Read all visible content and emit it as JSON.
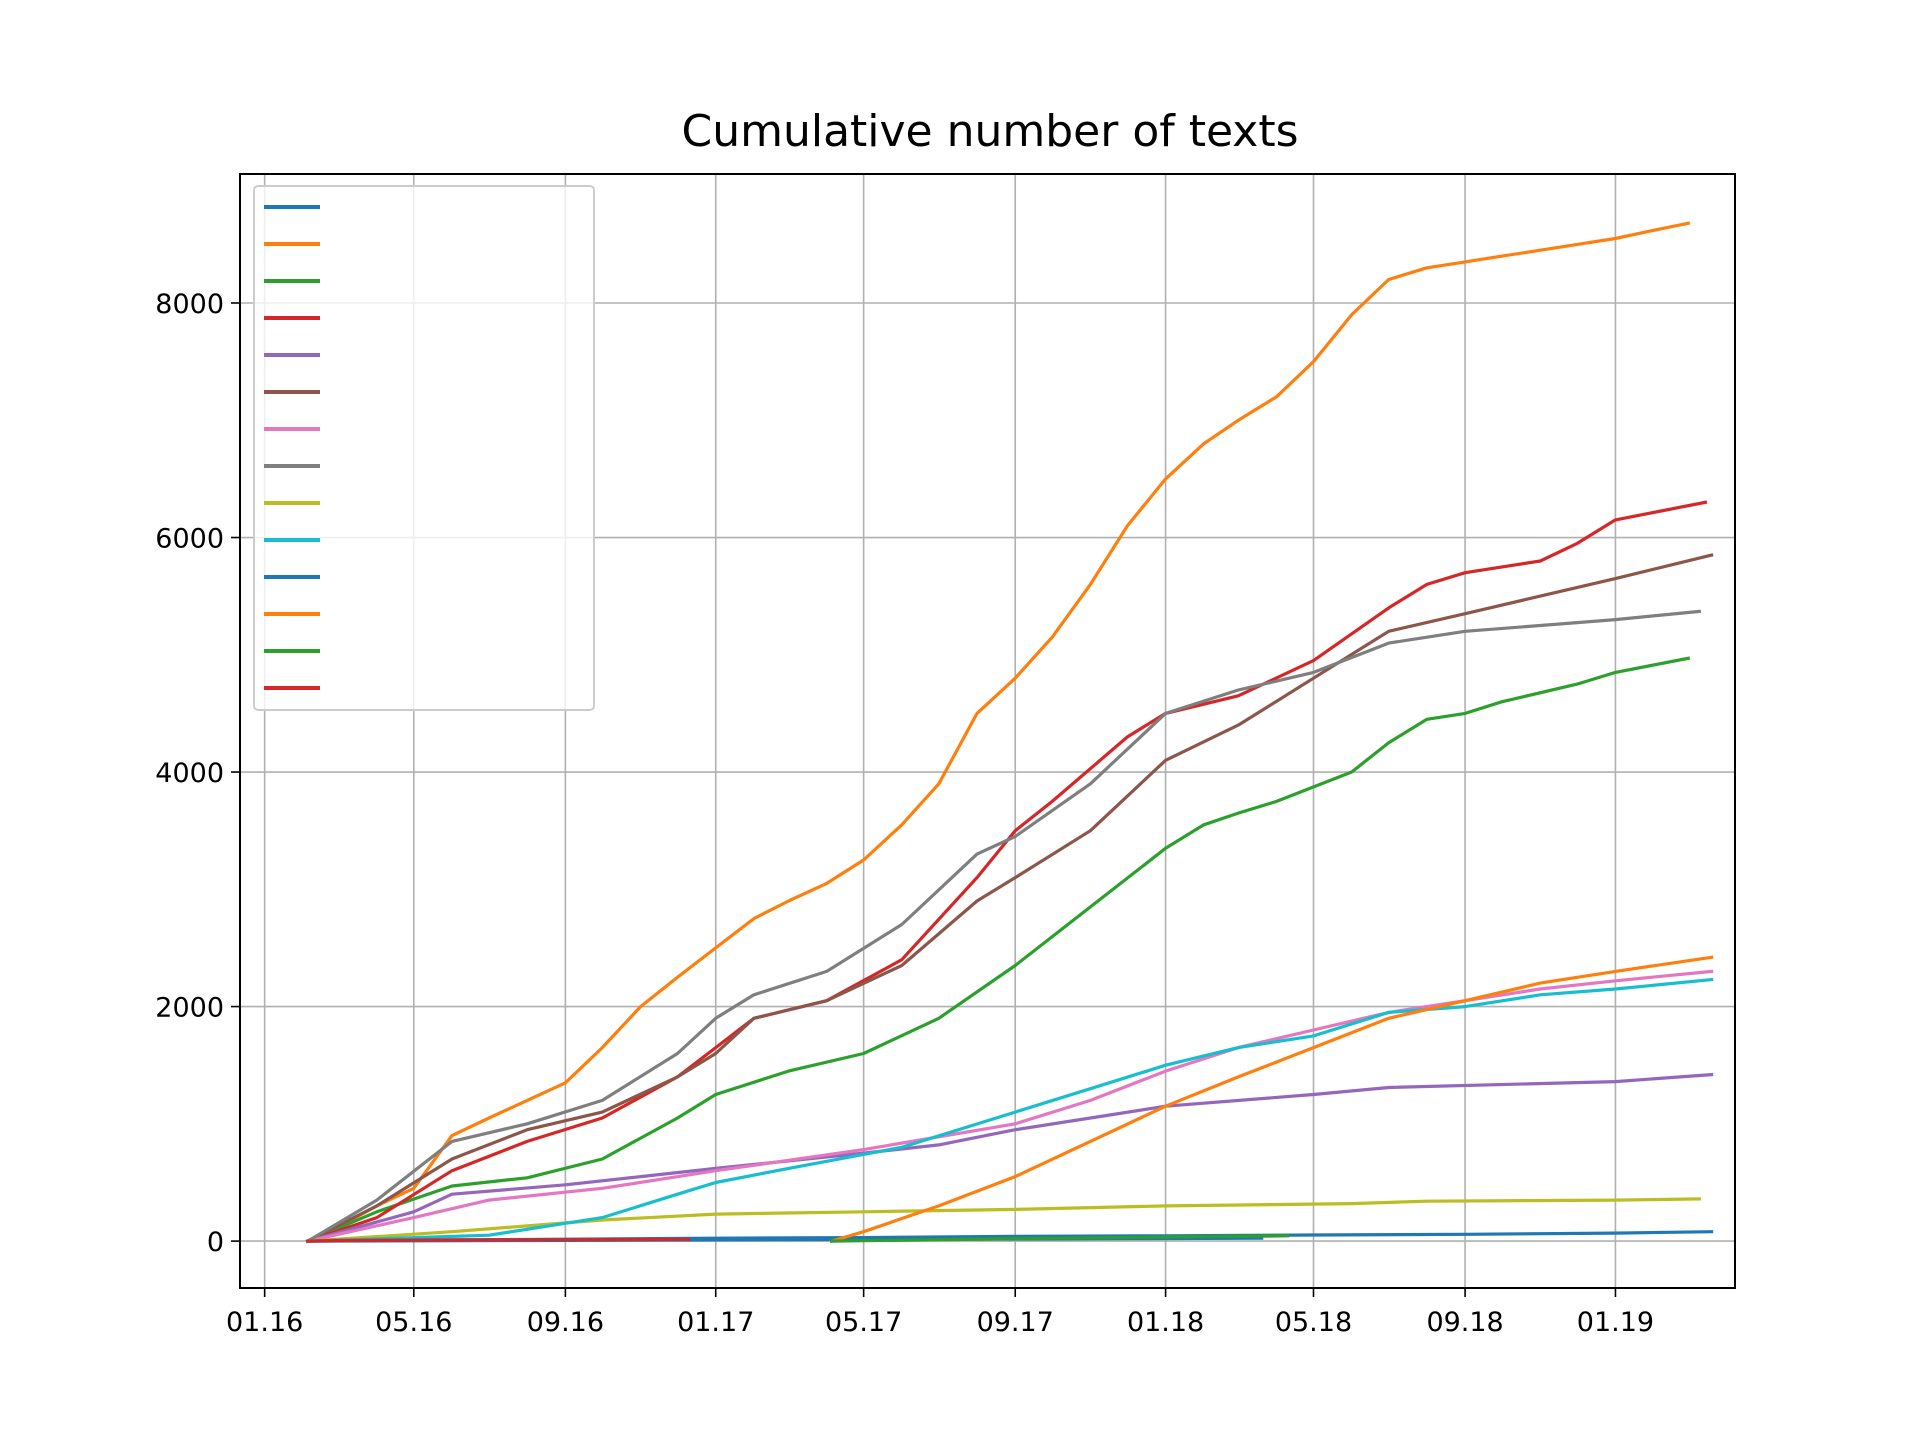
{
  "chart_data": {
    "type": "line",
    "title": "Cumulative number of texts",
    "xlabel": "",
    "ylabel": "",
    "x_ticks": [
      "01.16",
      "05.16",
      "09.16",
      "01.17",
      "05.17",
      "09.17",
      "01.18",
      "05.18",
      "09.18",
      "01.19"
    ],
    "y_ticks": [
      "0",
      "2000",
      "4000",
      "6000",
      "8000"
    ],
    "ylim": [
      -400,
      9100
    ],
    "xlim": [
      "2015-12-12",
      "2019-04-08"
    ],
    "grid": true,
    "legend": "upper-left",
    "series": [
      {
        "color": "#1f77b4",
        "points": [
          [
            "2016-02-05",
            0
          ],
          [
            "2016-06-01",
            10
          ],
          [
            "2016-10-01",
            18
          ],
          [
            "2017-01-01",
            25
          ],
          [
            "2017-05-01",
            30
          ],
          [
            "2017-09-01",
            40
          ],
          [
            "2018-01-01",
            45
          ],
          [
            "2018-05-01",
            52
          ],
          [
            "2018-09-01",
            58
          ],
          [
            "2019-01-01",
            68
          ],
          [
            "2019-03-20",
            80
          ]
        ]
      },
      {
        "color": "#ff7f0e",
        "points": [
          [
            "2016-02-05",
            0
          ],
          [
            "2016-03-01",
            120
          ],
          [
            "2016-04-01",
            300
          ],
          [
            "2016-05-01",
            450
          ],
          [
            "2016-06-01",
            900
          ],
          [
            "2016-07-01",
            1050
          ],
          [
            "2016-08-01",
            1200
          ],
          [
            "2016-09-01",
            1350
          ],
          [
            "2016-10-01",
            1650
          ],
          [
            "2016-11-01",
            2000
          ],
          [
            "2016-12-01",
            2250
          ],
          [
            "2017-01-01",
            2500
          ],
          [
            "2017-02-01",
            2750
          ],
          [
            "2017-03-01",
            2900
          ],
          [
            "2017-04-01",
            3050
          ],
          [
            "2017-05-01",
            3250
          ],
          [
            "2017-06-01",
            3550
          ],
          [
            "2017-07-01",
            3900
          ],
          [
            "2017-08-01",
            4500
          ],
          [
            "2017-09-01",
            4800
          ],
          [
            "2017-10-01",
            5150
          ],
          [
            "2017-11-01",
            5600
          ],
          [
            "2017-12-01",
            6100
          ],
          [
            "2018-01-01",
            6500
          ],
          [
            "2018-02-01",
            6800
          ],
          [
            "2018-03-01",
            7000
          ],
          [
            "2018-04-01",
            7200
          ],
          [
            "2018-05-01",
            7500
          ],
          [
            "2018-06-01",
            7900
          ],
          [
            "2018-07-01",
            8200
          ],
          [
            "2018-08-01",
            8300
          ],
          [
            "2018-09-01",
            8350
          ],
          [
            "2018-10-01",
            8400
          ],
          [
            "2018-11-01",
            8450
          ],
          [
            "2018-12-01",
            8500
          ],
          [
            "2019-01-01",
            8550
          ],
          [
            "2019-02-01",
            8620
          ],
          [
            "2019-03-01",
            8680
          ]
        ]
      },
      {
        "color": "#2ca02c",
        "points": [
          [
            "2016-02-05",
            0
          ],
          [
            "2016-04-01",
            250
          ],
          [
            "2016-06-01",
            470
          ],
          [
            "2016-08-01",
            540
          ],
          [
            "2016-10-01",
            700
          ],
          [
            "2016-12-01",
            1050
          ],
          [
            "2017-01-01",
            1250
          ],
          [
            "2017-03-01",
            1450
          ],
          [
            "2017-05-01",
            1600
          ],
          [
            "2017-07-01",
            1900
          ],
          [
            "2017-09-01",
            2350
          ],
          [
            "2017-11-01",
            2850
          ],
          [
            "2018-01-01",
            3350
          ],
          [
            "2018-02-01",
            3550
          ],
          [
            "2018-03-01",
            3650
          ],
          [
            "2018-04-01",
            3750
          ],
          [
            "2018-06-01",
            4000
          ],
          [
            "2018-07-01",
            4250
          ],
          [
            "2018-08-01",
            4450
          ],
          [
            "2018-09-01",
            4500
          ],
          [
            "2018-10-01",
            4600
          ],
          [
            "2018-12-01",
            4750
          ],
          [
            "2019-01-01",
            4850
          ],
          [
            "2019-03-01",
            4970
          ]
        ]
      },
      {
        "color": "#d62728",
        "points": [
          [
            "2016-02-05",
            0
          ],
          [
            "2016-04-01",
            200
          ],
          [
            "2016-06-01",
            600
          ],
          [
            "2016-08-01",
            850
          ],
          [
            "2016-10-01",
            1050
          ],
          [
            "2016-12-01",
            1400
          ],
          [
            "2017-01-01",
            1650
          ],
          [
            "2017-02-01",
            1900
          ],
          [
            "2017-04-01",
            2050
          ],
          [
            "2017-06-01",
            2400
          ],
          [
            "2017-08-01",
            3100
          ],
          [
            "2017-09-01",
            3500
          ],
          [
            "2017-10-01",
            3750
          ],
          [
            "2017-12-01",
            4300
          ],
          [
            "2018-01-01",
            4500
          ],
          [
            "2018-03-01",
            4650
          ],
          [
            "2018-05-01",
            4950
          ],
          [
            "2018-07-01",
            5400
          ],
          [
            "2018-08-01",
            5600
          ],
          [
            "2018-09-01",
            5700
          ],
          [
            "2018-11-01",
            5800
          ],
          [
            "2018-12-01",
            5950
          ],
          [
            "2019-01-01",
            6150
          ],
          [
            "2019-03-15",
            6300
          ]
        ]
      },
      {
        "color": "#9467bd",
        "points": [
          [
            "2016-02-05",
            0
          ],
          [
            "2016-05-01",
            250
          ],
          [
            "2016-06-01",
            400
          ],
          [
            "2016-09-01",
            480
          ],
          [
            "2017-01-01",
            620
          ],
          [
            "2017-05-01",
            750
          ],
          [
            "2017-07-01",
            820
          ],
          [
            "2017-09-01",
            950
          ],
          [
            "2017-11-01",
            1050
          ],
          [
            "2018-01-01",
            1150
          ],
          [
            "2018-05-01",
            1250
          ],
          [
            "2018-07-01",
            1310
          ],
          [
            "2019-01-01",
            1360
          ],
          [
            "2019-03-20",
            1420
          ]
        ]
      },
      {
        "color": "#8c564b",
        "points": [
          [
            "2016-02-05",
            0
          ],
          [
            "2016-04-01",
            300
          ],
          [
            "2016-06-01",
            700
          ],
          [
            "2016-08-01",
            950
          ],
          [
            "2016-10-01",
            1100
          ],
          [
            "2016-12-01",
            1400
          ],
          [
            "2017-01-01",
            1600
          ],
          [
            "2017-02-01",
            1900
          ],
          [
            "2017-04-01",
            2050
          ],
          [
            "2017-06-01",
            2350
          ],
          [
            "2017-08-01",
            2900
          ],
          [
            "2017-09-01",
            3100
          ],
          [
            "2017-11-01",
            3500
          ],
          [
            "2018-01-01",
            4100
          ],
          [
            "2018-03-01",
            4400
          ],
          [
            "2018-05-01",
            4800
          ],
          [
            "2018-07-01",
            5200
          ],
          [
            "2018-09-01",
            5350
          ],
          [
            "2018-11-01",
            5500
          ],
          [
            "2019-01-01",
            5650
          ],
          [
            "2019-03-20",
            5850
          ]
        ]
      },
      {
        "color": "#e377c2",
        "points": [
          [
            "2016-02-05",
            0
          ],
          [
            "2016-05-01",
            200
          ],
          [
            "2016-07-01",
            350
          ],
          [
            "2016-10-01",
            450
          ],
          [
            "2017-01-01",
            600
          ],
          [
            "2017-05-01",
            780
          ],
          [
            "2017-09-01",
            1000
          ],
          [
            "2017-11-01",
            1200
          ],
          [
            "2018-01-01",
            1450
          ],
          [
            "2018-03-01",
            1650
          ],
          [
            "2018-05-01",
            1800
          ],
          [
            "2018-07-01",
            1950
          ],
          [
            "2018-09-01",
            2050
          ],
          [
            "2018-11-01",
            2150
          ],
          [
            "2019-01-01",
            2220
          ],
          [
            "2019-03-20",
            2300
          ]
        ]
      },
      {
        "color": "#7f7f7f",
        "points": [
          [
            "2016-02-05",
            0
          ],
          [
            "2016-04-01",
            350
          ],
          [
            "2016-06-01",
            850
          ],
          [
            "2016-08-01",
            1000
          ],
          [
            "2016-10-01",
            1200
          ],
          [
            "2016-12-01",
            1600
          ],
          [
            "2017-01-01",
            1900
          ],
          [
            "2017-02-01",
            2100
          ],
          [
            "2017-04-01",
            2300
          ],
          [
            "2017-06-01",
            2700
          ],
          [
            "2017-08-01",
            3300
          ],
          [
            "2017-09-01",
            3450
          ],
          [
            "2017-11-01",
            3900
          ],
          [
            "2018-01-01",
            4500
          ],
          [
            "2018-03-01",
            4700
          ],
          [
            "2018-05-01",
            4850
          ],
          [
            "2018-07-01",
            5100
          ],
          [
            "2018-09-01",
            5200
          ],
          [
            "2018-11-01",
            5250
          ],
          [
            "2019-01-01",
            5300
          ],
          [
            "2019-03-10",
            5370
          ]
        ]
      },
      {
        "color": "#bcbd22",
        "points": [
          [
            "2016-02-05",
            0
          ],
          [
            "2016-06-01",
            80
          ],
          [
            "2016-10-01",
            180
          ],
          [
            "2017-01-01",
            230
          ],
          [
            "2017-05-01",
            250
          ],
          [
            "2017-09-01",
            270
          ],
          [
            "2018-01-01",
            300
          ],
          [
            "2018-06-01",
            320
          ],
          [
            "2018-08-01",
            340
          ],
          [
            "2019-01-01",
            350
          ],
          [
            "2019-03-10",
            360
          ]
        ]
      },
      {
        "color": "#17becf",
        "points": [
          [
            "2016-02-05",
            0
          ],
          [
            "2016-07-01",
            50
          ],
          [
            "2016-10-01",
            200
          ],
          [
            "2016-12-01",
            400
          ],
          [
            "2017-01-01",
            500
          ],
          [
            "2017-03-01",
            620
          ],
          [
            "2017-06-01",
            800
          ],
          [
            "2017-09-01",
            1100
          ],
          [
            "2017-11-01",
            1300
          ],
          [
            "2018-01-01",
            1500
          ],
          [
            "2018-03-01",
            1650
          ],
          [
            "2018-05-01",
            1750
          ],
          [
            "2018-07-01",
            1950
          ],
          [
            "2018-09-01",
            2000
          ],
          [
            "2018-11-01",
            2100
          ],
          [
            "2019-01-01",
            2150
          ],
          [
            "2019-03-20",
            2230
          ]
        ]
      },
      {
        "color": "#1f77b4",
        "points": [
          [
            "2016-02-05",
            0
          ],
          [
            "2016-08-01",
            5
          ],
          [
            "2017-01-01",
            10
          ],
          [
            "2017-06-01",
            15
          ],
          [
            "2017-12-01",
            20
          ],
          [
            "2018-03-20",
            25
          ]
        ]
      },
      {
        "color": "#ff7f0e",
        "points": [
          [
            "2017-04-05",
            0
          ],
          [
            "2017-05-01",
            80
          ],
          [
            "2017-07-01",
            300
          ],
          [
            "2017-09-01",
            550
          ],
          [
            "2017-11-01",
            850
          ],
          [
            "2018-01-01",
            1150
          ],
          [
            "2018-03-01",
            1400
          ],
          [
            "2018-05-01",
            1650
          ],
          [
            "2018-07-01",
            1900
          ],
          [
            "2018-09-01",
            2050
          ],
          [
            "2018-11-01",
            2200
          ],
          [
            "2019-01-01",
            2300
          ],
          [
            "2019-03-20",
            2420
          ]
        ]
      },
      {
        "color": "#2ca02c",
        "points": [
          [
            "2017-04-05",
            0
          ],
          [
            "2017-09-01",
            20
          ],
          [
            "2018-01-01",
            35
          ],
          [
            "2018-04-10",
            45
          ]
        ]
      },
      {
        "color": "#d62728",
        "points": [
          [
            "2016-02-05",
            0
          ],
          [
            "2016-03-01",
            5
          ],
          [
            "2016-06-01",
            10
          ],
          [
            "2016-09-01",
            12
          ],
          [
            "2016-12-10",
            15
          ]
        ]
      }
    ]
  }
}
